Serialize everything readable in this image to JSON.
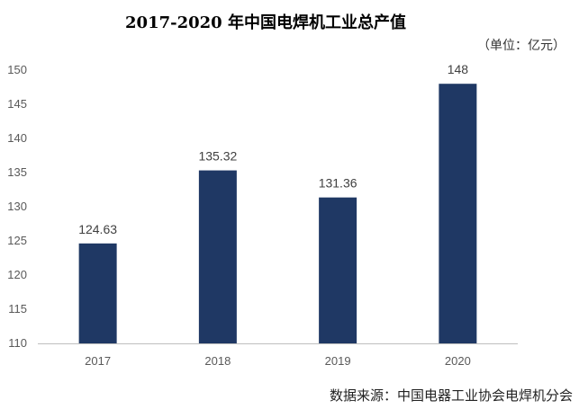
{
  "chart_data": {
    "type": "bar",
    "title": "2017-2020 年中国电焊机工业总产值",
    "unit_label": "（单位：亿元）",
    "categories": [
      "2017",
      "2018",
      "2019",
      "2020"
    ],
    "values": [
      124.63,
      135.32,
      131.36,
      148
    ],
    "data_labels": [
      "124.63",
      "135.32",
      "131.36",
      "148"
    ],
    "y_ticks": [
      "110",
      "115",
      "120",
      "125",
      "130",
      "135",
      "140",
      "145",
      "150"
    ],
    "ylim": [
      110,
      150
    ],
    "grid": false,
    "bar_color": "#1f3864",
    "source": "数据来源：中国电器工业协会电焊机分会"
  }
}
